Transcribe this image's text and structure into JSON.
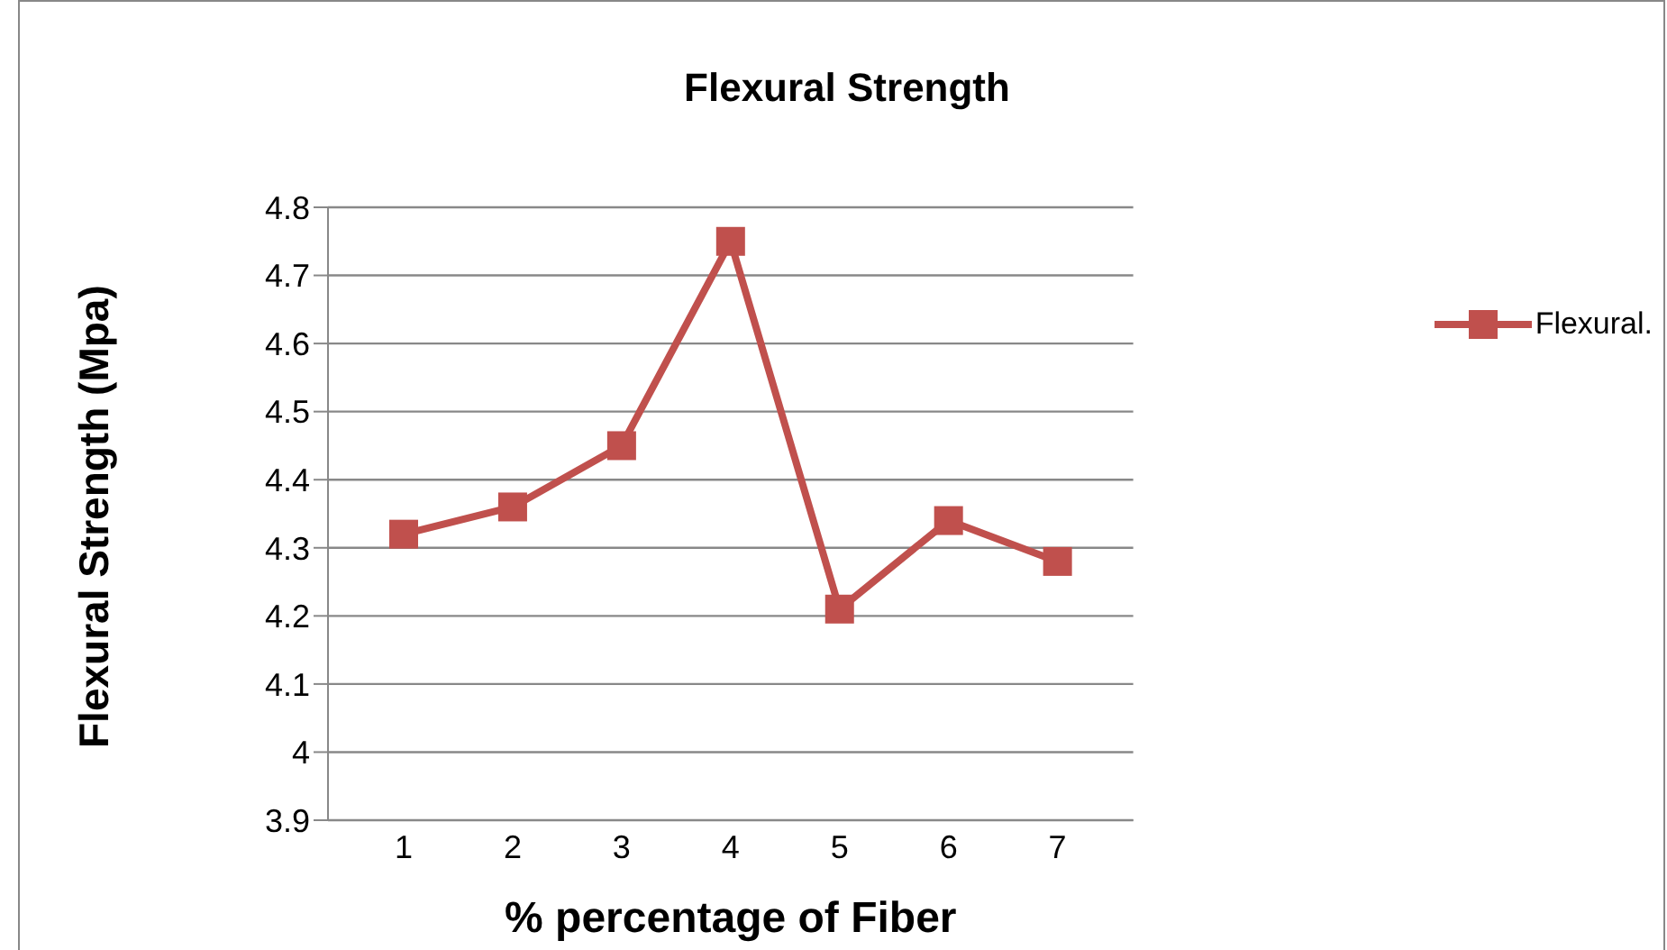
{
  "chart_data": {
    "type": "line",
    "title": "Flexural Strength",
    "xlabel": "% percentage of Fiber",
    "ylabel": "Flexural Strength (Mpa)",
    "categories": [
      "1",
      "2",
      "3",
      "4",
      "5",
      "6",
      "7"
    ],
    "series": [
      {
        "name": "Flexural.",
        "color": "#c0504d",
        "values": [
          4.32,
          4.36,
          4.45,
          4.75,
          4.21,
          4.34,
          4.28
        ]
      }
    ],
    "ylim": [
      3.9,
      4.8
    ],
    "yticks": [
      3.9,
      {
        "value": 4.0,
        "label": "4"
      },
      4.1,
      4.2,
      4.3,
      4.4,
      4.5,
      4.6,
      4.7,
      4.8
    ],
    "grid": "y",
    "legend": "right",
    "marker": "square",
    "line_style": "solid"
  }
}
